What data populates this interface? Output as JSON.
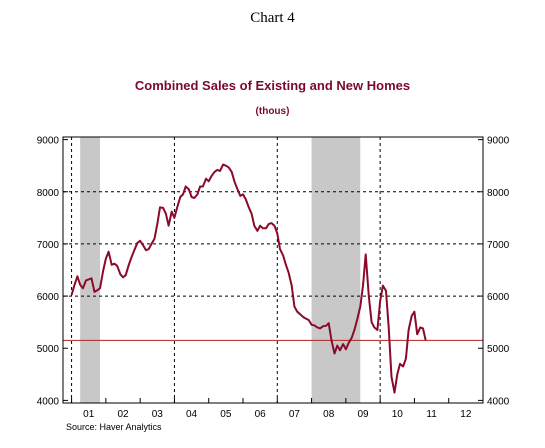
{
  "header": {
    "chart_label": "Chart 4"
  },
  "chart_data": {
    "type": "line",
    "title": "Combined Sales of Existing and New Homes",
    "subtitle": "(thous)",
    "source": "Source: Haver Analytics",
    "xlabel": "",
    "ylabel": "",
    "xlim": [
      2000.75,
      2013.0
    ],
    "ylim": [
      3950,
      9050
    ],
    "y_ticks": [
      4000,
      5000,
      6000,
      7000,
      8000,
      9000
    ],
    "y_tick_labels": [
      "4000",
      "5000",
      "6000",
      "7000",
      "8000",
      "9000"
    ],
    "y_axes": [
      "left",
      "right"
    ],
    "x_tick_labels": [
      "01",
      "02",
      "03",
      "04",
      "05",
      "06",
      "07",
      "08",
      "09",
      "10",
      "11",
      "12"
    ],
    "x_tick_centers": [
      2001.5,
      2002.5,
      2003.5,
      2004.5,
      2005.5,
      2006.5,
      2007.5,
      2008.5,
      2009.5,
      2010.5,
      2011.5,
      2012.5
    ],
    "x_year_boundaries": [
      2001,
      2002,
      2003,
      2004,
      2005,
      2006,
      2007,
      2008,
      2009,
      2010,
      2011,
      2012
    ],
    "vertical_grid_years": [
      2001,
      2004,
      2007,
      2010
    ],
    "horizontal_grid": [
      6000,
      7000,
      8000
    ],
    "grid_style": "dashed",
    "recession_shading": [
      {
        "start": 2001.25,
        "end": 2001.83
      },
      {
        "start": 2008.0,
        "end": 2009.42
      }
    ],
    "reference_line": {
      "y": 5150,
      "color": "#b22222"
    },
    "series": [
      {
        "color": "#8b0a2a",
        "x": [
          2001.0,
          2001.08,
          2001.17,
          2001.25,
          2001.33,
          2001.42,
          2001.5,
          2001.58,
          2001.67,
          2001.75,
          2001.83,
          2001.92,
          2002.0,
          2002.08,
          2002.17,
          2002.25,
          2002.33,
          2002.42,
          2002.5,
          2002.58,
          2002.67,
          2002.75,
          2002.83,
          2002.92,
          2003.0,
          2003.08,
          2003.17,
          2003.25,
          2003.33,
          2003.42,
          2003.5,
          2003.58,
          2003.67,
          2003.75,
          2003.83,
          2003.92,
          2004.0,
          2004.08,
          2004.17,
          2004.25,
          2004.33,
          2004.42,
          2004.5,
          2004.58,
          2004.67,
          2004.75,
          2004.83,
          2004.92,
          2005.0,
          2005.08,
          2005.17,
          2005.25,
          2005.33,
          2005.42,
          2005.5,
          2005.58,
          2005.67,
          2005.75,
          2005.83,
          2005.92,
          2006.0,
          2006.08,
          2006.17,
          2006.25,
          2006.33,
          2006.42,
          2006.5,
          2006.58,
          2006.67,
          2006.75,
          2006.83,
          2006.92,
          2007.0,
          2007.08,
          2007.17,
          2007.25,
          2007.33,
          2007.42,
          2007.5,
          2007.58,
          2007.67,
          2007.75,
          2007.83,
          2007.92,
          2008.0,
          2008.08,
          2008.17,
          2008.25,
          2008.33,
          2008.42,
          2008.5,
          2008.58,
          2008.67,
          2008.75,
          2008.83,
          2008.92,
          2009.0,
          2009.08,
          2009.17,
          2009.25,
          2009.33,
          2009.42,
          2009.5,
          2009.58,
          2009.67,
          2009.75,
          2009.83,
          2009.92,
          2010.0,
          2010.08,
          2010.17,
          2010.25,
          2010.33,
          2010.42,
          2010.5,
          2010.58,
          2010.67,
          2010.75,
          2010.83,
          2010.92,
          2011.0,
          2011.08,
          2011.17,
          2011.25,
          2011.33
        ],
        "values": [
          6020,
          6200,
          6380,
          6220,
          6150,
          6300,
          6320,
          6340,
          6080,
          6110,
          6150,
          6480,
          6720,
          6850,
          6600,
          6620,
          6580,
          6420,
          6360,
          6400,
          6600,
          6750,
          6880,
          7020,
          7060,
          6980,
          6880,
          6900,
          7000,
          7100,
          7380,
          7700,
          7690,
          7580,
          7350,
          7620,
          7500,
          7700,
          7900,
          7950,
          8100,
          8050,
          7900,
          7880,
          7950,
          8100,
          8100,
          8250,
          8200,
          8300,
          8380,
          8420,
          8400,
          8520,
          8500,
          8470,
          8380,
          8200,
          8060,
          7920,
          7950,
          7860,
          7700,
          7580,
          7350,
          7250,
          7350,
          7300,
          7300,
          7380,
          7400,
          7350,
          7200,
          6900,
          6780,
          6600,
          6450,
          6200,
          5800,
          5700,
          5650,
          5600,
          5570,
          5540,
          5450,
          5440,
          5400,
          5380,
          5420,
          5430,
          5480,
          5150,
          4900,
          5050,
          4960,
          5080,
          4980,
          5100,
          5200,
          5350,
          5550,
          5800,
          6200,
          6800,
          6000,
          5500,
          5400,
          5350,
          5900,
          6200,
          6100,
          5400,
          4450,
          4150,
          4500,
          4700,
          4650,
          4800,
          5350,
          5620,
          5700,
          5270,
          5400,
          5380,
          5150
        ]
      }
    ]
  }
}
